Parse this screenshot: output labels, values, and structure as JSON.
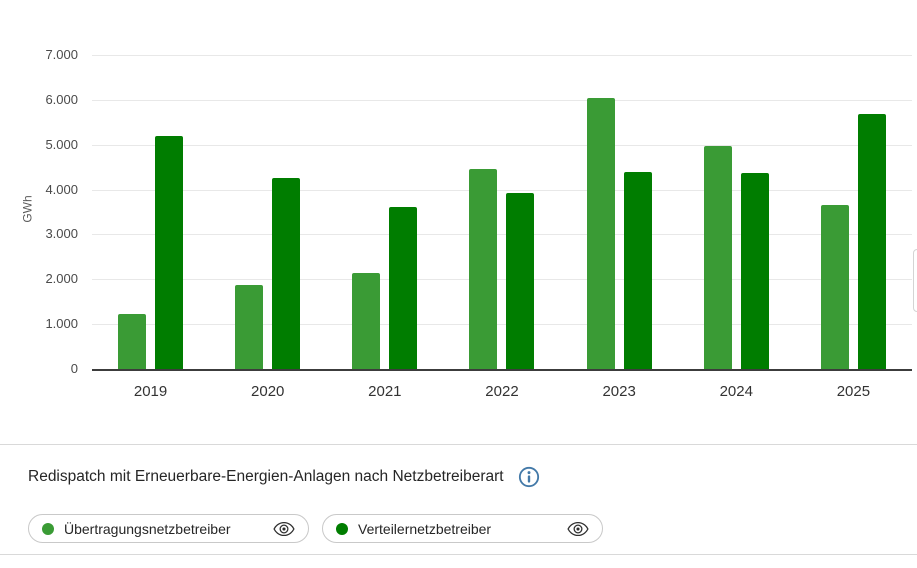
{
  "chart_data": {
    "type": "bar",
    "title": "Redispatch mit Erneuerbare-Energien-Anlagen nach Netzbetreiberart",
    "ylabel": "GWh",
    "xlabel": "",
    "categories": [
      "2019",
      "2020",
      "2021",
      "2022",
      "2023",
      "2024",
      "2025"
    ],
    "series": [
      {
        "name": "Übertragungsnetzbetreiber",
        "color": "#3A9B35",
        "values": [
          1220,
          1870,
          2130,
          4470,
          6050,
          4980,
          3650
        ]
      },
      {
        "name": "Verteilernetzbetreiber",
        "color": "#007D00",
        "values": [
          5200,
          4250,
          3620,
          3930,
          4400,
          4380,
          5690
        ]
      }
    ],
    "ylim": [
      0,
      7000
    ],
    "ytick_step": 1000,
    "ytick_labels": [
      "0",
      "1.000",
      "2.000",
      "3.000",
      "4.000",
      "5.000",
      "6.000",
      "7.000"
    ],
    "grid": true,
    "legend_position": "bottom"
  },
  "header": {
    "title": "Redispatch mit Erneuerbare-Energien-Anlagen nach Netzbetreiberart"
  },
  "legend": {
    "items": [
      {
        "label": "Übertragungsnetzbetreiber",
        "color": "#3A9B35"
      },
      {
        "label": "Verteilernetzbetreiber",
        "color": "#007D00"
      }
    ]
  },
  "colors": {
    "bar_light_green": "#3A9B35",
    "bar_dark_green": "#007D00",
    "info_icon_blue": "#4379A8",
    "gridline": "#E8E8E8",
    "axis_line": "#3C3C3C",
    "divider": "#D9D9D9",
    "eye_icon": "#2F2F2F"
  }
}
